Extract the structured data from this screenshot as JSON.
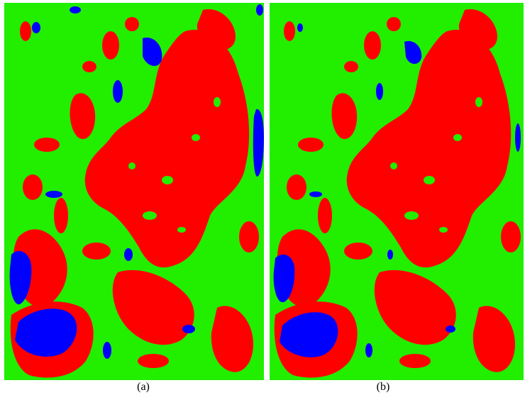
{
  "figure": {
    "panels": [
      {
        "label": "(a)",
        "legend_colors": {
          "background": "#22ee00",
          "urban": "#ff0000",
          "water": "#0000ff"
        }
      },
      {
        "label": "(b)",
        "legend_colors": {
          "background": "#22ee00",
          "urban": "#ff0000",
          "water": "#0000ff"
        }
      }
    ]
  }
}
